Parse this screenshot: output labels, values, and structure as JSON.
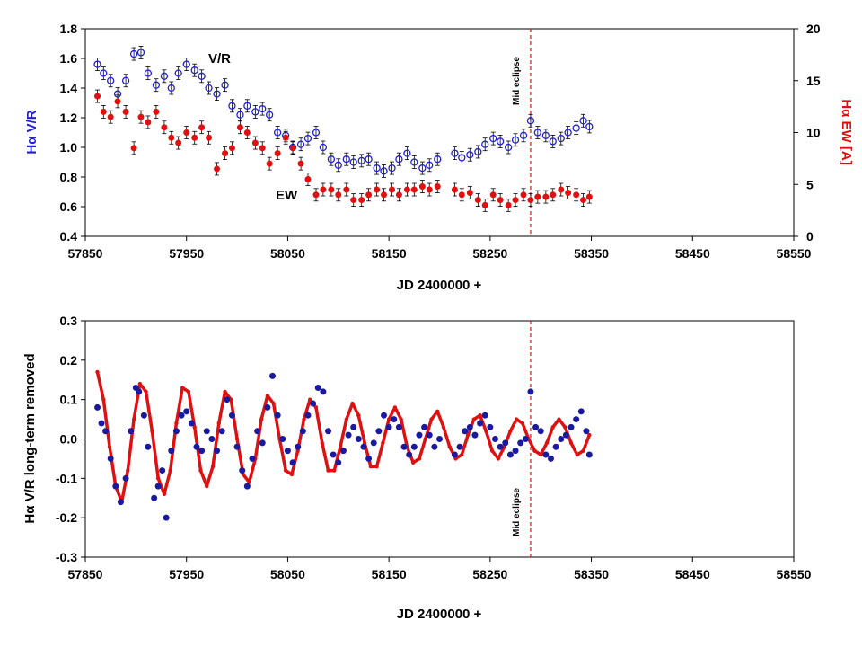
{
  "chart_data": [
    {
      "type": "scatter",
      "xlabel": "JD 2400000 +",
      "ylabel": "Hα V/R",
      "y2label": "Hα EW [A]",
      "xlim": [
        57850,
        58550
      ],
      "ylim": [
        0.4,
        1.8
      ],
      "y2lim": [
        0,
        20
      ],
      "xticks": [
        "57850",
        "57950",
        "58050",
        "58150",
        "58250",
        "58350",
        "58450",
        "58550"
      ],
      "yticks": [
        "0.4",
        "0.6",
        "0.8",
        "1.0",
        "1.2",
        "1.4",
        "1.6",
        "1.8"
      ],
      "y2ticks": [
        "0",
        "5",
        "10",
        "15",
        "20"
      ],
      "vline": {
        "x": 58290,
        "label": "Mid eclipse"
      },
      "annotations": {
        "vr": "V/R",
        "ew": "EW"
      },
      "colors": {
        "vr": "#1f1fd6",
        "ew": "#e01010",
        "vline": "#e01010"
      },
      "series": [
        {
          "name": "V/R",
          "axis": "left",
          "marker": "open-circle",
          "x": [
            57862,
            57868,
            57875,
            57882,
            57890,
            57898,
            57905,
            57912,
            57920,
            57928,
            57935,
            57942,
            57950,
            57958,
            57965,
            57972,
            57980,
            57988,
            57995,
            58003,
            58010,
            58018,
            58025,
            58032,
            58040,
            58048,
            58055,
            58063,
            58070,
            58078,
            58085,
            58093,
            58100,
            58108,
            58115,
            58123,
            58130,
            58138,
            58145,
            58153,
            58160,
            58168,
            58175,
            58183,
            58190,
            58198,
            58215,
            58222,
            58230,
            58238,
            58245,
            58253,
            58260,
            58268,
            58275,
            58283,
            58290,
            58297,
            58305,
            58312,
            58320,
            58327,
            58335,
            58342,
            58348
          ],
          "y": [
            1.56,
            1.5,
            1.45,
            1.36,
            1.45,
            1.63,
            1.64,
            1.5,
            1.42,
            1.48,
            1.4,
            1.5,
            1.56,
            1.52,
            1.48,
            1.4,
            1.36,
            1.42,
            1.28,
            1.22,
            1.28,
            1.24,
            1.26,
            1.22,
            1.1,
            1.08,
            1.0,
            1.02,
            1.06,
            1.1,
            1.0,
            0.92,
            0.88,
            0.92,
            0.9,
            0.91,
            0.92,
            0.86,
            0.84,
            0.86,
            0.92,
            0.96,
            0.9,
            0.86,
            0.88,
            0.92,
            0.96,
            0.93,
            0.95,
            0.97,
            1.02,
            1.06,
            1.04,
            1.0,
            1.05,
            1.08,
            1.18,
            1.1,
            1.08,
            1.04,
            1.06,
            1.1,
            1.13,
            1.18,
            1.14
          ]
        },
        {
          "name": "EW",
          "axis": "right",
          "marker": "filled-circle",
          "x": [
            57862,
            57868,
            57875,
            57882,
            57890,
            57898,
            57905,
            57912,
            57920,
            57928,
            57935,
            57942,
            57950,
            57958,
            57965,
            57972,
            57980,
            57988,
            57995,
            58003,
            58010,
            58018,
            58025,
            58032,
            58040,
            58048,
            58055,
            58063,
            58070,
            58078,
            58085,
            58093,
            58100,
            58108,
            58115,
            58123,
            58130,
            58138,
            58145,
            58153,
            58160,
            58168,
            58175,
            58183,
            58190,
            58198,
            58215,
            58222,
            58230,
            58238,
            58245,
            58253,
            58260,
            58268,
            58275,
            58283,
            58290,
            58297,
            58305,
            58312,
            58320,
            58327,
            58335,
            58342,
            58348
          ],
          "y": [
            13.5,
            12.0,
            11.5,
            13.0,
            12.0,
            8.5,
            11.5,
            11.0,
            12.0,
            10.5,
            9.5,
            9.0,
            10.0,
            9.5,
            10.5,
            9.5,
            6.5,
            8.0,
            8.5,
            10.5,
            10.0,
            9.0,
            8.5,
            7.0,
            8.0,
            9.5,
            8.5,
            7.0,
            5.5,
            4.0,
            4.5,
            4.5,
            4.0,
            4.5,
            3.5,
            3.5,
            4.0,
            4.5,
            4.0,
            4.5,
            4.0,
            4.5,
            4.5,
            4.8,
            4.5,
            4.8,
            4.5,
            4.0,
            4.2,
            3.5,
            3.0,
            4.0,
            3.5,
            3.0,
            3.5,
            4.0,
            3.5,
            3.8,
            3.8,
            4.0,
            4.5,
            4.2,
            4.0,
            3.5,
            3.8
          ]
        }
      ]
    },
    {
      "type": "scatter",
      "xlabel": "JD 2400000 +",
      "ylabel": "Hα V/R long-term removed",
      "xlim": [
        57850,
        58550
      ],
      "ylim": [
        -0.3,
        0.3
      ],
      "xticks": [
        "57850",
        "57950",
        "58050",
        "58150",
        "58250",
        "58350",
        "58450",
        "58550"
      ],
      "yticks": [
        "-0.3",
        "-0.2",
        "-0.1",
        "0.0",
        "0.1",
        "0.2",
        "0.3"
      ],
      "vline": {
        "x": 58290,
        "label": "Mid eclipse"
      },
      "colors": {
        "data": "#1a1aa0",
        "fit": "#e01010",
        "vline": "#e01010"
      },
      "series": [
        {
          "name": "V/R residuals",
          "marker": "filled-circle",
          "x": [
            57862,
            57866,
            57870,
            57875,
            57880,
            57885,
            57890,
            57895,
            57900,
            57903,
            57908,
            57912,
            57918,
            57922,
            57926,
            57930,
            57935,
            57940,
            57945,
            57950,
            57955,
            57960,
            57965,
            57970,
            57975,
            57980,
            57985,
            57990,
            57995,
            58000,
            58005,
            58010,
            58015,
            58020,
            58025,
            58030,
            58035,
            58040,
            58045,
            58050,
            58055,
            58060,
            58065,
            58070,
            58075,
            58080,
            58085,
            58090,
            58095,
            58100,
            58105,
            58110,
            58115,
            58120,
            58125,
            58130,
            58135,
            58140,
            58145,
            58150,
            58155,
            58160,
            58165,
            58170,
            58175,
            58180,
            58185,
            58190,
            58195,
            58200,
            58215,
            58220,
            58225,
            58230,
            58235,
            58240,
            58245,
            58250,
            58255,
            58260,
            58265,
            58270,
            58275,
            58280,
            58285,
            58290,
            58295,
            58300,
            58305,
            58310,
            58315,
            58320,
            58325,
            58330,
            58335,
            58340,
            58345,
            58348
          ],
          "y": [
            0.08,
            0.04,
            0.02,
            -0.05,
            -0.12,
            -0.16,
            -0.1,
            0.02,
            0.13,
            0.12,
            0.06,
            -0.02,
            -0.15,
            -0.12,
            -0.08,
            -0.2,
            -0.03,
            0.02,
            0.06,
            0.07,
            0.04,
            -0.02,
            -0.03,
            0.02,
            0.0,
            -0.03,
            0.02,
            0.1,
            0.06,
            -0.02,
            -0.08,
            -0.12,
            -0.05,
            0.02,
            -0.01,
            0.08,
            0.16,
            0.06,
            0.0,
            -0.03,
            -0.06,
            -0.02,
            0.02,
            0.06,
            0.09,
            0.13,
            0.12,
            0.02,
            -0.04,
            -0.06,
            -0.03,
            0.01,
            0.03,
            0.0,
            -0.02,
            -0.05,
            -0.01,
            0.02,
            0.06,
            0.03,
            0.05,
            0.03,
            -0.02,
            -0.04,
            -0.02,
            0.01,
            0.03,
            0.01,
            -0.02,
            0.0,
            -0.04,
            -0.02,
            0.02,
            0.03,
            0.01,
            0.04,
            0.06,
            0.03,
            0.0,
            -0.02,
            -0.01,
            -0.04,
            -0.03,
            -0.01,
            0.0,
            0.12,
            0.03,
            0.02,
            -0.04,
            -0.05,
            -0.02,
            0.0,
            0.01,
            0.03,
            0.05,
            0.07,
            0.02,
            -0.04
          ]
        },
        {
          "name": "Sine fit",
          "marker": "line",
          "x": [
            57862,
            57868,
            57874,
            57880,
            57886,
            57892,
            57898,
            57904,
            57910,
            57916,
            57922,
            57928,
            57934,
            57940,
            57946,
            57952,
            57958,
            57964,
            57970,
            57976,
            57982,
            57988,
            57994,
            58000,
            58006,
            58012,
            58018,
            58024,
            58030,
            58036,
            58042,
            58048,
            58054,
            58060,
            58066,
            58072,
            58078,
            58084,
            58090,
            58096,
            58102,
            58108,
            58114,
            58120,
            58126,
            58132,
            58138,
            58144,
            58150,
            58156,
            58162,
            58168,
            58174,
            58180,
            58186,
            58192,
            58198,
            58204,
            58210,
            58216,
            58222,
            58228,
            58234,
            58240,
            58246,
            58252,
            58258,
            58264,
            58270,
            58276,
            58282,
            58288,
            58294,
            58300,
            58306,
            58312,
            58318,
            58324,
            58330,
            58336,
            58342,
            58348
          ],
          "y": [
            0.17,
            0.1,
            -0.02,
            -0.12,
            -0.16,
            -0.08,
            0.05,
            0.14,
            0.12,
            0.02,
            -0.1,
            -0.14,
            -0.08,
            0.04,
            0.13,
            0.12,
            0.03,
            -0.08,
            -0.12,
            -0.07,
            0.04,
            0.12,
            0.1,
            0.0,
            -0.09,
            -0.11,
            -0.05,
            0.05,
            0.11,
            0.09,
            0.0,
            -0.08,
            -0.09,
            -0.03,
            0.05,
            0.1,
            0.08,
            -0.01,
            -0.08,
            -0.08,
            -0.02,
            0.05,
            0.09,
            0.06,
            -0.01,
            -0.07,
            -0.07,
            -0.01,
            0.05,
            0.08,
            0.05,
            -0.02,
            -0.06,
            -0.05,
            0.0,
            0.05,
            0.07,
            0.03,
            -0.02,
            -0.05,
            -0.04,
            0.01,
            0.05,
            0.06,
            0.02,
            -0.03,
            -0.05,
            -0.02,
            0.02,
            0.05,
            0.04,
            0.0,
            -0.03,
            -0.04,
            -0.01,
            0.03,
            0.05,
            0.03,
            -0.01,
            -0.04,
            -0.03,
            0.01
          ]
        }
      ]
    }
  ]
}
